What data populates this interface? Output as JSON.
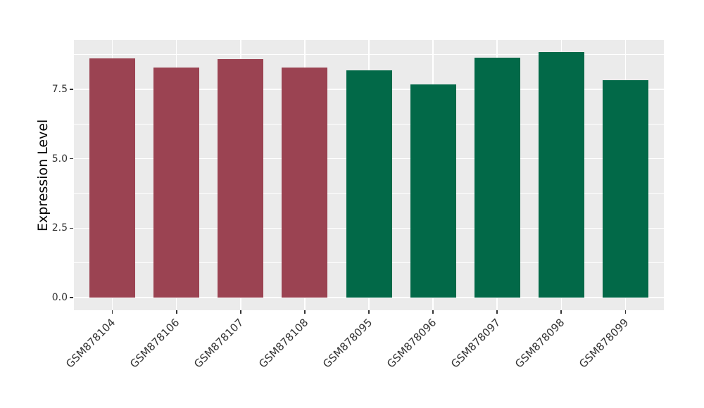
{
  "chart_data": {
    "type": "bar",
    "title": "",
    "xlabel": "",
    "ylabel": "Expression Level",
    "categories": [
      "GSM878104",
      "GSM878106",
      "GSM878107",
      "GSM878108",
      "GSM878095",
      "GSM878096",
      "GSM878097",
      "GSM878098",
      "GSM878099"
    ],
    "values": [
      8.61,
      8.28,
      8.59,
      8.28,
      8.18,
      7.67,
      8.63,
      8.84,
      7.82
    ],
    "bar_colors": [
      "#9B4352",
      "#9B4352",
      "#9B4352",
      "#9B4352",
      "#026948",
      "#026948",
      "#026948",
      "#026948",
      "#026948"
    ],
    "ylim": [
      0,
      9.28
    ],
    "y_ticks": {
      "values": [
        0,
        2.5,
        5,
        7.5
      ],
      "labels": [
        "0.0",
        "2.5",
        "5.0",
        "7.5"
      ]
    },
    "y_minor_ticks": [
      1.25,
      3.75,
      6.25,
      8.75
    ],
    "grid": "on",
    "legend": "none",
    "colors": {
      "panel_background": "#EBEBEB",
      "gridline": "#FFFFFF",
      "axis_text": "#333333",
      "axis_title": "#000000",
      "group_a_bar": "#9B4352",
      "group_b_bar": "#026948"
    }
  }
}
